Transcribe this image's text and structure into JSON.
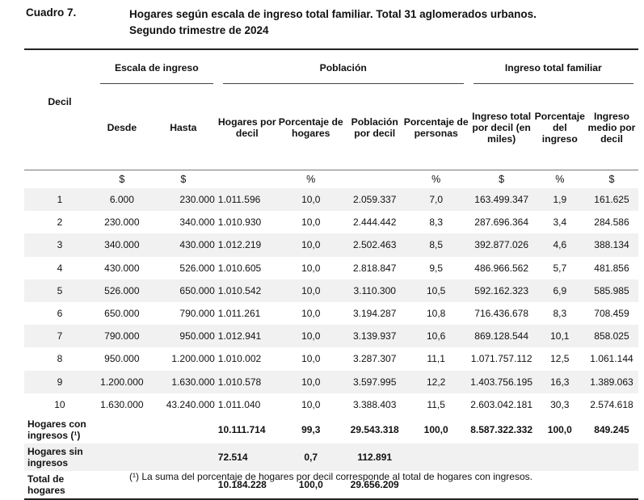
{
  "header": {
    "label": "Cuadro 7.",
    "title_line1": "Hogares según escala de ingreso total familiar. Total 31 aglomerados urbanos.",
    "title_line2": "Segundo trimestre de 2024"
  },
  "table": {
    "group_headers": {
      "decil": "Decil",
      "escala": "Escala de ingreso",
      "poblacion": "Población",
      "ingreso": "Ingreso total familiar"
    },
    "sub_headers": {
      "desde": "Desde",
      "hasta": "Hasta",
      "hogares": "Hogares por decil",
      "pct_hogares": "Porcentaje de hogares",
      "poblacion": "Población por decil",
      "pct_personas": "Porcentaje de personas",
      "ingreso_total": "Ingreso total por decil (en miles)",
      "pct_ingreso": "Porcentaje del ingreso",
      "ingreso_medio": "Ingreso medio por decil"
    },
    "units": [
      "$",
      "$",
      "",
      "%",
      "",
      "%",
      "$",
      "%",
      "$"
    ],
    "rows": [
      [
        "1",
        "6.000",
        "230.000",
        "1.011.596",
        "10,0",
        "2.059.337",
        "7,0",
        "163.499.347",
        "1,9",
        "161.625"
      ],
      [
        "2",
        "230.000",
        "340.000",
        "1.010.930",
        "10,0",
        "2.444.442",
        "8,3",
        "287.696.364",
        "3,4",
        "284.586"
      ],
      [
        "3",
        "340.000",
        "430.000",
        "1.012.219",
        "10,0",
        "2.502.463",
        "8,5",
        "392.877.026",
        "4,6",
        "388.134"
      ],
      [
        "4",
        "430.000",
        "526.000",
        "1.010.605",
        "10,0",
        "2.818.847",
        "9,5",
        "486.966.562",
        "5,7",
        "481.856"
      ],
      [
        "5",
        "526.000",
        "650.000",
        "1.010.542",
        "10,0",
        "3.110.300",
        "10,5",
        "592.162.323",
        "6,9",
        "585.985"
      ],
      [
        "6",
        "650.000",
        "790.000",
        "1.011.261",
        "10,0",
        "3.194.287",
        "10,8",
        "716.436.678",
        "8,3",
        "708.459"
      ],
      [
        "7",
        "790.000",
        "950.000",
        "1.012.941",
        "10,0",
        "3.139.937",
        "10,6",
        "869.128.544",
        "10,1",
        "858.025"
      ],
      [
        "8",
        "950.000",
        "1.200.000",
        "1.010.002",
        "10,0",
        "3.287.307",
        "11,1",
        "1.071.757.112",
        "12,5",
        "1.061.144"
      ],
      [
        "9",
        "1.200.000",
        "1.630.000",
        "1.010.578",
        "10,0",
        "3.597.995",
        "12,2",
        "1.403.756.195",
        "16,3",
        "1.389.063"
      ],
      [
        "10",
        "1.630.000",
        "43.240.000",
        "1.011.040",
        "10,0",
        "3.388.403",
        "11,5",
        "2.603.042.181",
        "30,3",
        "2.574.618"
      ]
    ],
    "totals": [
      {
        "label": "Hogares con ingresos (¹)",
        "hogares": "10.111.714",
        "pct_hogares": "99,3",
        "poblacion": "29.543.318",
        "pct_personas": "100,0",
        "ingreso_total": "8.587.322.332",
        "pct_ingreso": "100,0",
        "ingreso_medio": "849.245"
      },
      {
        "label": "Hogares sin ingresos",
        "hogares": "72.514",
        "pct_hogares": "0,7",
        "poblacion": "112.891",
        "pct_personas": "",
        "ingreso_total": "",
        "pct_ingreso": "",
        "ingreso_medio": ""
      },
      {
        "label": "Total de hogares",
        "hogares": "10.184.228",
        "pct_hogares": "100,0",
        "poblacion": "29.656.209",
        "pct_personas": "",
        "ingreso_total": "",
        "pct_ingreso": "",
        "ingreso_medio": ""
      }
    ]
  },
  "footnote": "(¹) La suma del porcentaje de hogares por decil corresponde al total de hogares con ingresos."
}
